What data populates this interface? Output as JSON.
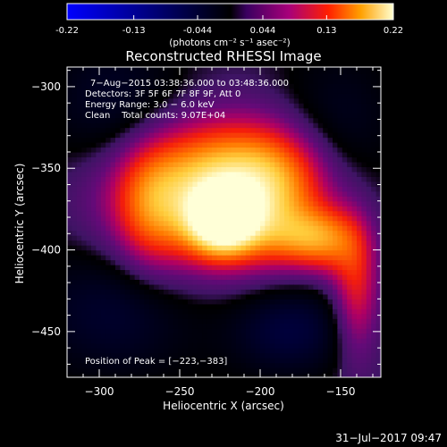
{
  "colorbar": {
    "ticks": [
      "-0.22",
      "-0.13",
      "-0.044",
      "0.044",
      "0.13",
      "0.22"
    ],
    "tick_values": [
      -0.22,
      -0.13,
      -0.044,
      0.044,
      0.13,
      0.22
    ],
    "unit_label": "(photons cm⁻² s⁻¹ asec⁻²)",
    "range": [
      -0.22,
      0.22
    ]
  },
  "chart_data": {
    "type": "heatmap",
    "title": "Reconstructed RHESSI Image",
    "xlabel": "Heliocentric X (arcsec)",
    "ylabel": "Heliocentric Y (arcsec)",
    "xlim": [
      -320,
      -125
    ],
    "ylim": [
      -478,
      -288
    ],
    "xticks": [
      -300,
      -250,
      -200,
      -150
    ],
    "yticks": [
      -300,
      -350,
      -400,
      -450
    ],
    "xtick_labels": [
      "−300",
      "−250",
      "−200",
      "−150"
    ],
    "ytick_labels": [
      "−300",
      "−350",
      "−400",
      "−450"
    ],
    "annotations": [
      "7−Aug−2015 03:38:36.000 to 03:48:36.000",
      "Detectors: 3F 5F 6F 7F 8F 9F, Att 0",
      "Energy Range: 3.0 − 6.0 keV",
      "Clean    Total counts: 9.07E+04"
    ],
    "peak_label": "Position of Peak = [−223,−383]",
    "peak": {
      "x": -223,
      "y": -383
    },
    "sources": [
      {
        "x": -223,
        "y": -382,
        "amp": 0.2,
        "sx": 15,
        "sy": 14
      },
      {
        "x": -245,
        "y": -372,
        "amp": 0.1,
        "sx": 38,
        "sy": 32
      },
      {
        "x": -212,
        "y": -353,
        "amp": 0.1,
        "sx": 40,
        "sy": 22
      },
      {
        "x": -190,
        "y": -370,
        "amp": 0.07,
        "sx": 22,
        "sy": 28
      },
      {
        "x": -172,
        "y": -392,
        "amp": 0.075,
        "sx": 18,
        "sy": 12
      },
      {
        "x": -155,
        "y": -395,
        "amp": 0.06,
        "sx": 14,
        "sy": 16
      },
      {
        "x": -140,
        "y": -425,
        "amp": 0.075,
        "sx": 10,
        "sy": 30
      },
      {
        "x": -268,
        "y": -375,
        "amp": 0.05,
        "sx": 14,
        "sy": 26
      },
      {
        "x": -290,
        "y": -312,
        "amp": -0.045,
        "sx": 30,
        "sy": 30
      },
      {
        "x": -290,
        "y": -435,
        "amp": -0.05,
        "sx": 38,
        "sy": 30
      },
      {
        "x": -182,
        "y": -448,
        "amp": -0.06,
        "sx": 26,
        "sy": 20
      },
      {
        "x": -152,
        "y": -330,
        "amp": -0.04,
        "sx": 26,
        "sy": 36
      }
    ],
    "background": 0.008
  },
  "timestamp": "31−Jul−2017 09:47"
}
